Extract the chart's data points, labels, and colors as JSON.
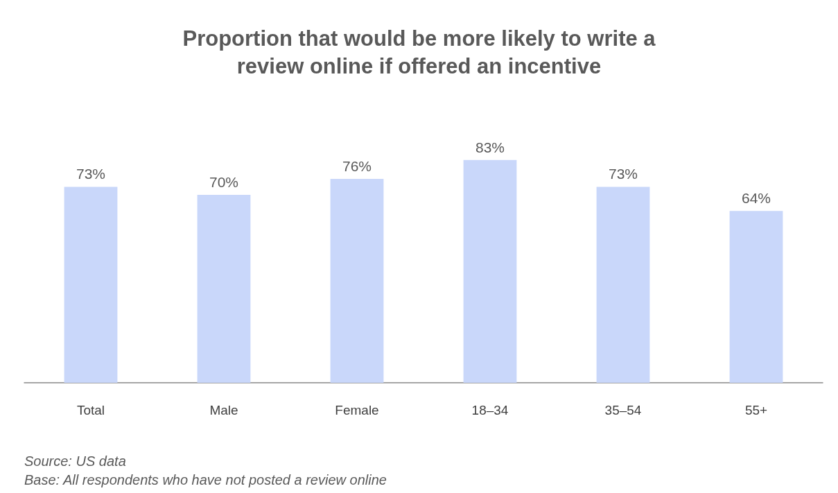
{
  "chart_data": {
    "type": "bar",
    "title": "Proportion that would be more likely to write a\nreview online if offered an incentive",
    "categories": [
      "Total",
      "Male",
      "Female",
      "18–34",
      "35–54",
      "55+"
    ],
    "values": [
      73,
      70,
      76,
      83,
      73,
      64
    ],
    "value_labels": [
      "73%",
      "70%",
      "76%",
      "83%",
      "73%",
      "64%"
    ],
    "color": "#c9d7fa",
    "annotations": [
      "Source: US data",
      "Base: All respondents who have not posted a review online"
    ]
  }
}
